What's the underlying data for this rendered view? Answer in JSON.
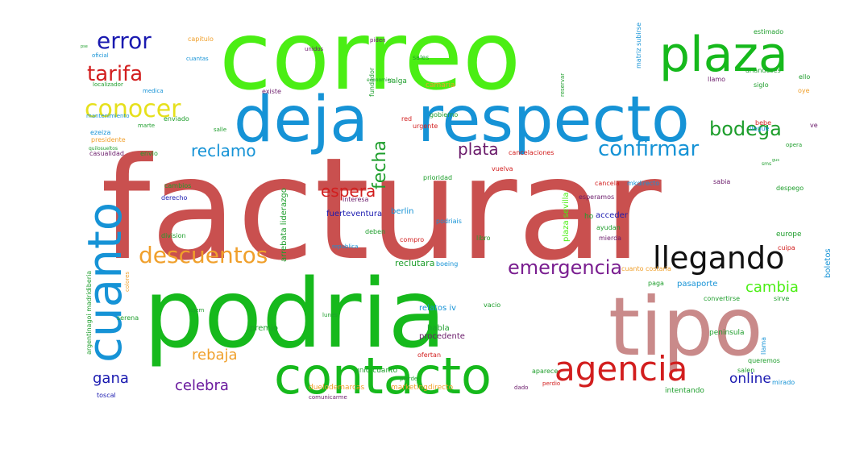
{
  "words": [
    {
      "text": "facturar",
      "color": "#c9504f"
    },
    {
      "text": "correo",
      "color": "#4bee14"
    },
    {
      "text": "podria",
      "color": "#16b91c"
    },
    {
      "text": "tipo",
      "color": "#c98a8a"
    },
    {
      "text": "respecto",
      "color": "#1693d6"
    },
    {
      "text": "deja",
      "color": "#1693d6"
    },
    {
      "text": "contacto",
      "color": "#16b91c"
    },
    {
      "text": "plaza",
      "color": "#16b91c"
    },
    {
      "text": "cuanto",
      "color": "#1693d6"
    },
    {
      "text": "agencia",
      "color": "#d21e1e"
    },
    {
      "text": "llegando",
      "color": "#111111"
    },
    {
      "text": "conocer",
      "color": "#e6e01c"
    },
    {
      "text": "error",
      "color": "#1a1ab0"
    },
    {
      "text": "tarifa",
      "color": "#d21e1e"
    },
    {
      "text": "bodega",
      "color": "#1e9e2c"
    },
    {
      "text": "confirmar",
      "color": "#1693d6"
    },
    {
      "text": "descuentos",
      "color": "#f0a02c"
    },
    {
      "text": "emergencia",
      "color": "#7a1e90"
    },
    {
      "text": "fecha",
      "color": "#1e9e2c"
    },
    {
      "text": "reclamo",
      "color": "#1693d6"
    },
    {
      "text": "plata",
      "color": "#6a1a6a"
    },
    {
      "text": "espera",
      "color": "#d21e1e"
    },
    {
      "text": "cambia",
      "color": "#4bee14"
    },
    {
      "text": "rebaja",
      "color": "#f0a02c"
    },
    {
      "text": "celebra",
      "color": "#6a1a9e"
    },
    {
      "text": "gana",
      "color": "#1a1ab0"
    },
    {
      "text": "online",
      "color": "#1a1ab0"
    },
    {
      "text": "reclutara",
      "color": "#1e9e2c"
    },
    {
      "text": "fuerteventura",
      "color": "#1a1ab0"
    },
    {
      "text": "berlin",
      "color": "#1693d6"
    },
    {
      "text": "boletos",
      "color": "#1693d6"
    },
    {
      "text": "relatos iv",
      "color": "#1693d6"
    },
    {
      "text": "habla",
      "color": "#1e9e2c"
    },
    {
      "text": "procedente",
      "color": "#6a1a6a"
    },
    {
      "text": "premio",
      "color": "#1e9e2c"
    },
    {
      "text": "ofertan",
      "color": "#d21e1e"
    },
    {
      "text": "unio cuanto",
      "color": "#1e9e2c"
    },
    {
      "text": "duelodemarcas",
      "color": "#f0a02c"
    },
    {
      "text": "marketingdirecto",
      "color": "#f0a02c"
    },
    {
      "text": "comunicarme",
      "color": "#6a1a6a"
    },
    {
      "text": "intentando",
      "color": "#1e9e2c"
    },
    {
      "text": "toscal",
      "color": "#1a1ab0"
    },
    {
      "text": "dado",
      "color": "#6a1a6a"
    },
    {
      "text": "perdio",
      "color": "#d21e1e"
    },
    {
      "text": "salen",
      "color": "#1e9e2c"
    },
    {
      "text": "mirado",
      "color": "#1693d6"
    },
    {
      "text": "queremos",
      "color": "#1e9e2c"
    },
    {
      "text": "peninsula",
      "color": "#1e9e2c"
    },
    {
      "text": "llama",
      "color": "#1693d6"
    },
    {
      "text": "convertirse",
      "color": "#1e9e2c"
    },
    {
      "text": "sirve",
      "color": "#1e9e2c"
    },
    {
      "text": "pasaporte",
      "color": "#1693d6"
    },
    {
      "text": "paga",
      "color": "#1e9e2c"
    },
    {
      "text": "cuanto costaria",
      "color": "#f0a02c"
    },
    {
      "text": "europe",
      "color": "#1e9e2c"
    },
    {
      "text": "cuipa",
      "color": "#d21e1e"
    },
    {
      "text": "despego",
      "color": "#1e9e2c"
    },
    {
      "text": "sabia",
      "color": "#6a1a6a"
    },
    {
      "text": "cancela",
      "color": "#d21e1e"
    },
    {
      "text": "mkdirecto",
      "color": "#1693d6"
    },
    {
      "text": "esperamos",
      "color": "#6a1a6a"
    },
    {
      "text": "acceder",
      "color": "#1a1ab0"
    },
    {
      "text": "ayudan",
      "color": "#1e9e2c"
    },
    {
      "text": "mierda",
      "color": "#6a1a6a"
    },
    {
      "text": "ho",
      "color": "#1e9e2c"
    },
    {
      "text": "libro",
      "color": "#1e9e2c"
    },
    {
      "text": "podriais",
      "color": "#1693d6"
    },
    {
      "text": "compro",
      "color": "#d21e1e"
    },
    {
      "text": "deben",
      "color": "#1e9e2c"
    },
    {
      "text": "republica",
      "color": "#1693d6"
    },
    {
      "text": "boeing",
      "color": "#1693d6"
    },
    {
      "text": "plaza sevilla",
      "color": "#4bee14"
    },
    {
      "text": "division",
      "color": "#1e9e2c"
    },
    {
      "text": "arrebata liderazgo",
      "color": "#1e9e2c"
    },
    {
      "text": "derecho",
      "color": "#1a1ab0"
    },
    {
      "text": "cambios",
      "color": "#1e9e2c"
    },
    {
      "text": "interesa",
      "color": "#6a1a6a"
    },
    {
      "text": "prioridad",
      "color": "#1e9e2c"
    },
    {
      "text": "vuelva",
      "color": "#d21e1e"
    },
    {
      "text": "cancelaciones",
      "color": "#d21e1e"
    },
    {
      "text": "envio",
      "color": "#1e9e2c"
    },
    {
      "text": "casualidad",
      "color": "#6a1a6a"
    },
    {
      "text": "presidente",
      "color": "#f0a02c"
    },
    {
      "text": "ezeiza",
      "color": "#1693d6"
    },
    {
      "text": "marte",
      "color": "#1e9e2c"
    },
    {
      "text": "enviado",
      "color": "#1e9e2c"
    },
    {
      "text": "mantenimiento",
      "color": "#1693d6"
    },
    {
      "text": "localizador",
      "color": "#1e9e2c"
    },
    {
      "text": "medica",
      "color": "#1693d6"
    },
    {
      "text": "oficial",
      "color": "#1693d6"
    },
    {
      "text": "capitulo",
      "color": "#f0a02c"
    },
    {
      "text": "cuantas",
      "color": "#1693d6"
    },
    {
      "text": "unidos",
      "color": "#6a1a6a"
    },
    {
      "text": "existe",
      "color": "#6a1a6a"
    },
    {
      "text": "piden",
      "color": "#6a1a6a"
    },
    {
      "text": "sales",
      "color": "#1e9e2c"
    },
    {
      "text": "salga",
      "color": "#1e9e2c"
    },
    {
      "text": "camaria",
      "color": "#f0a02c"
    },
    {
      "text": "gobierno",
      "color": "#1e9e2c"
    },
    {
      "text": "urgente",
      "color": "#d21e1e"
    },
    {
      "text": "red",
      "color": "#d21e1e"
    },
    {
      "text": "llamo",
      "color": "#6a1a6a"
    },
    {
      "text": "siglo",
      "color": "#1e9e2c"
    },
    {
      "text": "oye",
      "color": "#f0a02c"
    },
    {
      "text": "arlandeses",
      "color": "#1e9e2c"
    },
    {
      "text": "ello",
      "color": "#1e9e2c"
    },
    {
      "text": "estimado",
      "color": "#1e9e2c"
    },
    {
      "text": "bebe",
      "color": "#d21e1e"
    },
    {
      "text": "llegue",
      "color": "#1693d6"
    },
    {
      "text": "ve",
      "color": "#6a1a6a"
    },
    {
      "text": "opera",
      "color": "#1e9e2c"
    },
    {
      "text": "fundador",
      "color": "#1e9e2c"
    },
    {
      "text": "reservar",
      "color": "#1e9e2c"
    },
    {
      "text": "matriz subirse",
      "color": "#1693d6"
    },
    {
      "text": "argentinagoi madridiberia",
      "color": "#1e9e2c"
    },
    {
      "text": "colores",
      "color": "#f0a02c"
    },
    {
      "text": "serena",
      "color": "#1e9e2c"
    },
    {
      "text": "ejem",
      "color": "#1e9e2c"
    },
    {
      "text": "lunes",
      "color": "#1e9e2c"
    },
    {
      "text": "vacio",
      "color": "#1e9e2c"
    },
    {
      "text": "aparece",
      "color": "#1e9e2c"
    },
    {
      "text": "pierde",
      "color": "#1e9e2c"
    },
    {
      "text": "economico",
      "color": "#1e9e2c"
    },
    {
      "text": "salle",
      "color": "#1e9e2c"
    },
    {
      "text": "quilosueltos",
      "color": "#1e9e2c"
    },
    {
      "text": "sms",
      "color": "#1e9e2c"
    },
    {
      "text": "gus",
      "color": "#1e9e2c"
    },
    {
      "text": "pse",
      "color": "#1e9e2c"
    }
  ]
}
